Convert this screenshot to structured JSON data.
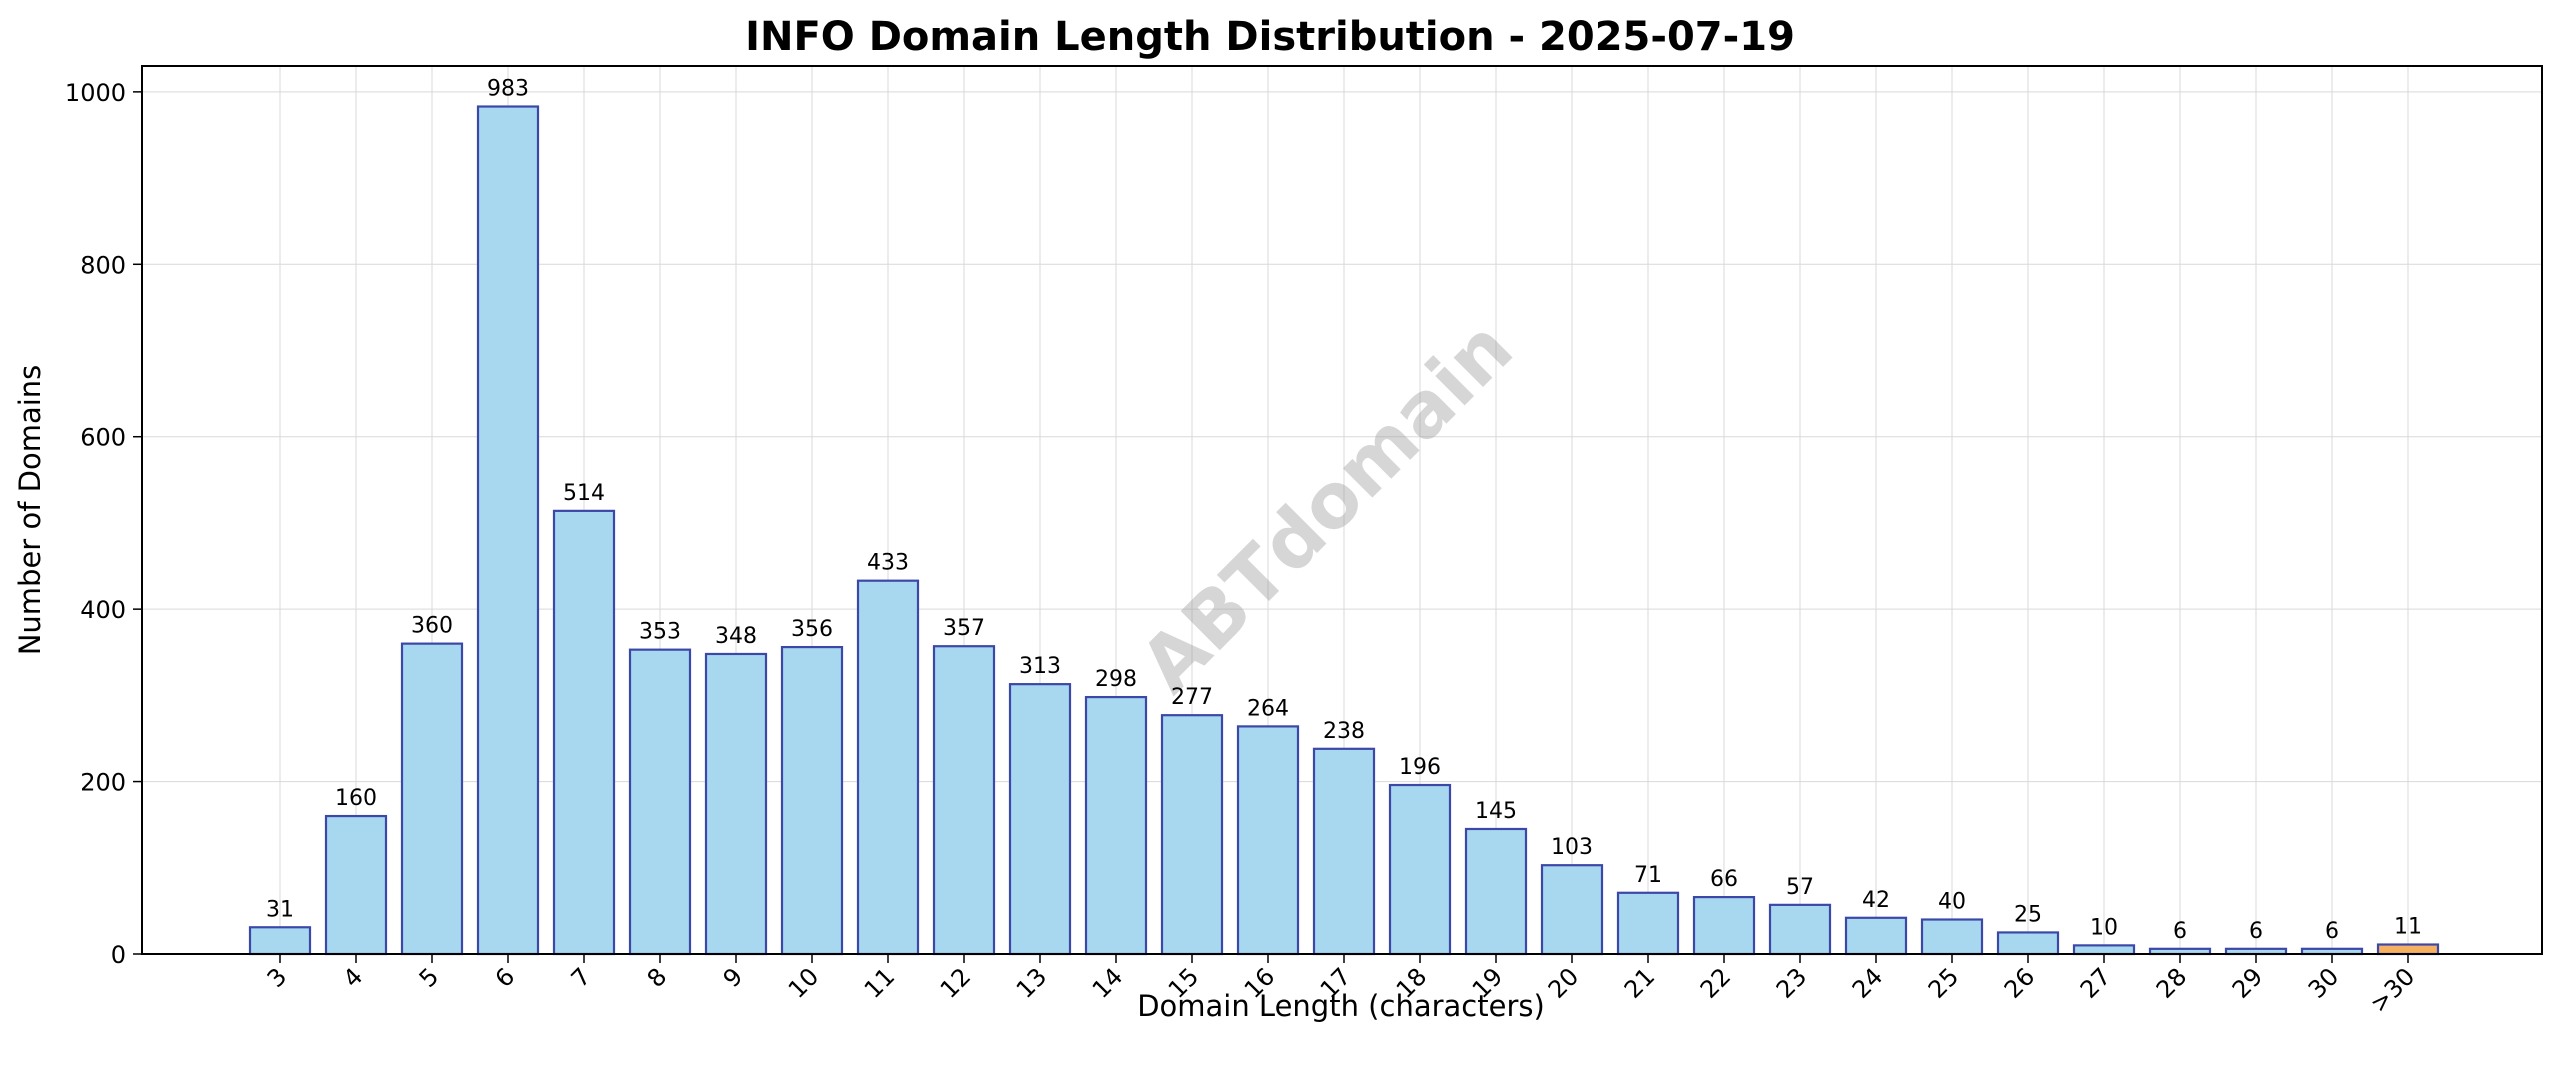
{
  "chart_data": {
    "type": "bar",
    "title": "INFO Domain Length Distribution - 2025-07-19",
    "xlabel": "Domain Length (characters)",
    "ylabel": "Number of Domains",
    "ylim": [
      0,
      1030
    ],
    "yticks": [
      0,
      200,
      400,
      600,
      800,
      1000
    ],
    "grid": true,
    "categories": [
      "3",
      "4",
      "5",
      "6",
      "7",
      "8",
      "9",
      "10",
      "11",
      "12",
      "13",
      "14",
      "15",
      "16",
      "17",
      "18",
      "19",
      "20",
      "21",
      "22",
      "23",
      "24",
      "25",
      "26",
      "27",
      "28",
      "29",
      "30",
      ">30"
    ],
    "values": [
      31,
      160,
      360,
      983,
      514,
      353,
      348,
      356,
      433,
      357,
      313,
      298,
      277,
      264,
      238,
      196,
      145,
      103,
      71,
      66,
      57,
      42,
      40,
      25,
      10,
      6,
      6,
      6,
      11
    ],
    "bar_color": "#a8d8ef",
    "bar_edge_color": "#3c48a8",
    "highlight_color": "#f5b062",
    "highlight_edge_color": "#3c48a8",
    "highlight_category": ">30",
    "watermark": "ABTdomain"
  }
}
